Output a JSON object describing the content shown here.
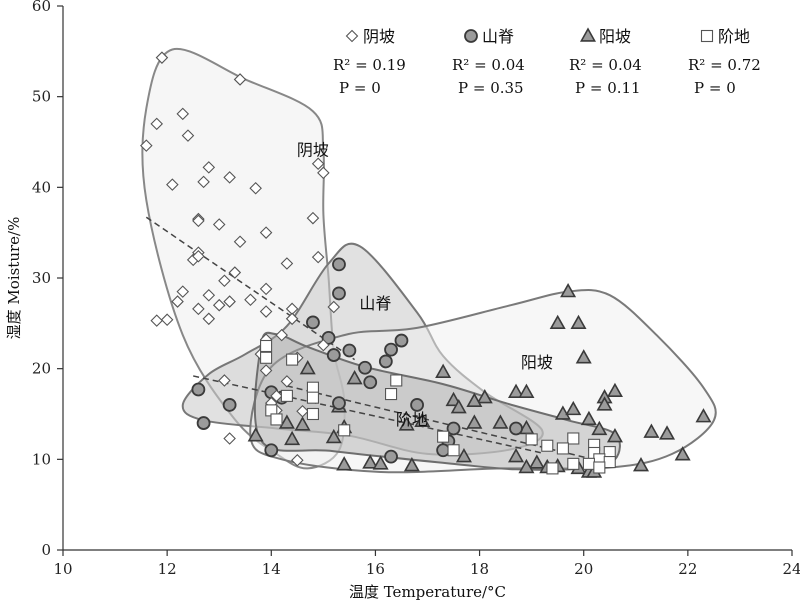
{
  "chart_data": {
    "type": "scatter",
    "xlabel": "温度 Temperature/°C",
    "ylabel": "湿度 Moisture/%",
    "xlim": [
      10,
      24
    ],
    "ylim": [
      0,
      60
    ],
    "xticks": [
      "10",
      "12",
      "14",
      "16",
      "18",
      "20",
      "22",
      "24"
    ],
    "yticks": [
      "0",
      "10",
      "20",
      "30",
      "40",
      "50",
      "60"
    ],
    "grid": false,
    "legend_position": "top",
    "series": [
      {
        "name": "阴坡",
        "marker": "diamond",
        "fill": "#ffffff",
        "stroke": "#555555",
        "r2": "R² = 0.19",
        "p": "P = 0",
        "trend": [
          [
            11.6,
            36.7
          ],
          [
            15.6,
            21.0
          ]
        ],
        "points": [
          [
            11.9,
            54.3
          ],
          [
            13.4,
            51.9
          ],
          [
            11.8,
            47.0
          ],
          [
            12.3,
            48.1
          ],
          [
            12.4,
            45.7
          ],
          [
            11.6,
            44.6
          ],
          [
            14.9,
            42.6
          ],
          [
            12.8,
            42.2
          ],
          [
            13.2,
            41.1
          ],
          [
            12.7,
            40.6
          ],
          [
            15.0,
            41.6
          ],
          [
            12.1,
            40.3
          ],
          [
            13.7,
            39.9
          ],
          [
            14.8,
            36.6
          ],
          [
            12.6,
            36.5
          ],
          [
            13.0,
            35.9
          ],
          [
            12.6,
            36.3
          ],
          [
            13.9,
            35.0
          ],
          [
            13.4,
            34.0
          ],
          [
            12.6,
            32.8
          ],
          [
            12.5,
            32.0
          ],
          [
            14.9,
            32.3
          ],
          [
            12.6,
            32.4
          ],
          [
            13.3,
            30.6
          ],
          [
            14.3,
            31.6
          ],
          [
            13.1,
            29.7
          ],
          [
            13.9,
            28.8
          ],
          [
            12.3,
            28.5
          ],
          [
            12.8,
            28.1
          ],
          [
            13.6,
            27.6
          ],
          [
            12.2,
            27.4
          ],
          [
            13.2,
            27.4
          ],
          [
            13.0,
            27.0
          ],
          [
            12.6,
            26.6
          ],
          [
            14.4,
            26.6
          ],
          [
            13.9,
            26.3
          ],
          [
            15.2,
            26.8
          ],
          [
            12.0,
            25.4
          ],
          [
            11.8,
            25.3
          ],
          [
            12.8,
            25.5
          ],
          [
            14.4,
            25.5
          ],
          [
            14.2,
            23.7
          ],
          [
            13.9,
            23.2
          ],
          [
            15.0,
            22.6
          ],
          [
            13.8,
            21.6
          ],
          [
            14.5,
            21.2
          ],
          [
            13.9,
            19.8
          ],
          [
            13.1,
            18.7
          ],
          [
            14.3,
            18.6
          ],
          [
            14.1,
            17.0
          ],
          [
            14.0,
            16.2
          ],
          [
            14.1,
            15.4
          ],
          [
            14.6,
            15.3
          ],
          [
            13.2,
            12.3
          ],
          [
            14.5,
            9.9
          ]
        ]
      },
      {
        "name": "山脊",
        "marker": "circle",
        "fill": "#9b9b9b",
        "stroke": "#3a3a3a",
        "r2": "R² = 0.04",
        "p": "P = 0.35",
        "trend": [
          [
            12.5,
            19.2
          ],
          [
            19.2,
            10.7
          ]
        ],
        "points": [
          [
            15.3,
            31.5
          ],
          [
            15.3,
            28.3
          ],
          [
            14.8,
            25.1
          ],
          [
            15.1,
            23.4
          ],
          [
            16.5,
            23.1
          ],
          [
            16.3,
            22.1
          ],
          [
            15.5,
            22.0
          ],
          [
            15.2,
            21.5
          ],
          [
            16.2,
            20.8
          ],
          [
            15.8,
            20.1
          ],
          [
            15.9,
            18.5
          ],
          [
            14.0,
            17.4
          ],
          [
            12.6,
            17.7
          ],
          [
            14.2,
            16.8
          ],
          [
            13.2,
            16.0
          ],
          [
            15.3,
            16.2
          ],
          [
            16.8,
            16.0
          ],
          [
            17.5,
            13.4
          ],
          [
            18.7,
            13.4
          ],
          [
            17.4,
            12.0
          ],
          [
            12.7,
            14.0
          ],
          [
            17.3,
            11.0
          ],
          [
            14.0,
            11.0
          ],
          [
            16.3,
            10.3
          ]
        ]
      },
      {
        "name": "阳坡",
        "marker": "triangle",
        "fill": "#9b9b9b",
        "stroke": "#3a3a3a",
        "r2": "R² = 0.04",
        "p": "P = 0.11",
        "trend": null,
        "points": [
          [
            19.7,
            28.5
          ],
          [
            19.5,
            25.0
          ],
          [
            19.9,
            25.0
          ],
          [
            20.0,
            21.2
          ],
          [
            17.3,
            19.6
          ],
          [
            14.7,
            20.0
          ],
          [
            15.6,
            18.9
          ],
          [
            18.7,
            17.4
          ],
          [
            18.9,
            17.4
          ],
          [
            20.6,
            17.5
          ],
          [
            20.4,
            16.8
          ],
          [
            20.4,
            16.0
          ],
          [
            18.1,
            16.8
          ],
          [
            17.9,
            16.4
          ],
          [
            17.5,
            16.5
          ],
          [
            17.6,
            15.7
          ],
          [
            15.3,
            15.8
          ],
          [
            14.3,
            14.0
          ],
          [
            14.6,
            13.8
          ],
          [
            15.4,
            13.5
          ],
          [
            16.6,
            13.8
          ],
          [
            16.9,
            14.2
          ],
          [
            17.9,
            14.0
          ],
          [
            18.4,
            14.0
          ],
          [
            18.9,
            13.4
          ],
          [
            19.6,
            15.0
          ],
          [
            19.8,
            15.5
          ],
          [
            20.1,
            14.4
          ],
          [
            20.3,
            13.3
          ],
          [
            20.6,
            12.5
          ],
          [
            21.3,
            13.0
          ],
          [
            21.6,
            12.8
          ],
          [
            22.3,
            14.7
          ],
          [
            13.7,
            12.6
          ],
          [
            14.4,
            12.2
          ],
          [
            15.2,
            12.4
          ],
          [
            17.7,
            10.3
          ],
          [
            18.7,
            10.3
          ],
          [
            19.1,
            9.6
          ],
          [
            19.5,
            9.2
          ],
          [
            15.4,
            9.4
          ],
          [
            15.9,
            9.6
          ],
          [
            16.1,
            9.5
          ],
          [
            16.7,
            9.3
          ],
          [
            18.9,
            9.1
          ],
          [
            19.3,
            9.1
          ],
          [
            19.9,
            9.0
          ],
          [
            20.1,
            8.6
          ],
          [
            21.1,
            9.3
          ],
          [
            21.9,
            10.5
          ],
          [
            20.2,
            8.6
          ]
        ]
      },
      {
        "name": "阶地",
        "marker": "square",
        "fill": "#ffffff",
        "stroke": "#555555",
        "r2": "R² = 0.72",
        "p": "P = 0",
        "trend": [
          [
            14.3,
            18.1
          ],
          [
            20.4,
            9.7
          ]
        ],
        "points": [
          [
            13.9,
            22.5
          ],
          [
            13.9,
            21.2
          ],
          [
            14.4,
            21.0
          ],
          [
            14.8,
            17.9
          ],
          [
            14.3,
            17.0
          ],
          [
            14.8,
            16.8
          ],
          [
            16.4,
            18.7
          ],
          [
            16.3,
            17.2
          ],
          [
            14.0,
            15.4
          ],
          [
            14.8,
            15.0
          ],
          [
            14.1,
            14.4
          ],
          [
            15.4,
            13.2
          ],
          [
            17.3,
            12.5
          ],
          [
            19.0,
            12.2
          ],
          [
            19.8,
            12.3
          ],
          [
            20.2,
            11.6
          ],
          [
            19.3,
            11.5
          ],
          [
            17.5,
            11.0
          ],
          [
            19.6,
            11.2
          ],
          [
            20.2,
            10.7
          ],
          [
            20.5,
            10.8
          ],
          [
            20.3,
            10.0
          ],
          [
            20.5,
            9.7
          ],
          [
            19.8,
            9.5
          ],
          [
            20.1,
            9.5
          ],
          [
            20.3,
            9.1
          ],
          [
            19.4,
            9.0
          ]
        ]
      }
    ],
    "regions": [
      {
        "name": "阴坡",
        "label_pos": [
          14.8,
          43.5
        ],
        "fill": "#ececec",
        "opacity": 0.45,
        "stroke": "#888888",
        "path": [
          [
            13.5,
            51.9
          ],
          [
            12.1,
            55.2
          ],
          [
            11.6,
            48.7
          ],
          [
            11.6,
            38.6
          ],
          [
            12.3,
            23.7
          ],
          [
            13.3,
            14.4
          ],
          [
            14.1,
            10.6
          ],
          [
            14.7,
            9.0
          ],
          [
            15.3,
            11.0
          ],
          [
            15.4,
            16.6
          ],
          [
            15.2,
            22.0
          ],
          [
            15.1,
            30.0
          ],
          [
            15.0,
            37.0
          ],
          [
            15.0,
            44.0
          ],
          [
            14.8,
            48.4
          ]
        ]
      },
      {
        "name": "山脊",
        "label_pos": [
          16.0,
          26.6
        ],
        "fill": "#c9c9c9",
        "opacity": 0.55,
        "stroke": "#777777",
        "path": [
          [
            12.3,
            16.0
          ],
          [
            12.8,
            19.4
          ],
          [
            13.5,
            21.6
          ],
          [
            14.3,
            24.7
          ],
          [
            15.1,
            31.6
          ],
          [
            15.7,
            33.5
          ],
          [
            16.8,
            26.2
          ],
          [
            17.3,
            21.4
          ],
          [
            18.1,
            17.4
          ],
          [
            19.2,
            13.2
          ],
          [
            18.6,
            11.1
          ],
          [
            17.0,
            10.6
          ],
          [
            15.5,
            12.6
          ],
          [
            14.1,
            13.4
          ],
          [
            12.7,
            14.3
          ]
        ]
      },
      {
        "name": "阳坡",
        "label_pos": [
          19.1,
          20.1
        ],
        "fill": "#f0f0f0",
        "opacity": 0.5,
        "stroke": "#7a7a7a",
        "path": [
          [
            13.6,
            12.5
          ],
          [
            14.0,
            20.2
          ],
          [
            15.4,
            23.7
          ],
          [
            16.8,
            24.5
          ],
          [
            18.6,
            27.0
          ],
          [
            19.7,
            28.5
          ],
          [
            20.5,
            28.1
          ],
          [
            21.4,
            23.7
          ],
          [
            22.3,
            17.9
          ],
          [
            22.5,
            14.3
          ],
          [
            21.7,
            10.6
          ],
          [
            20.5,
            9.1
          ],
          [
            18.4,
            9.0
          ],
          [
            16.1,
            8.6
          ],
          [
            14.2,
            10.0
          ]
        ]
      },
      {
        "name": "阶地",
        "label_pos": [
          16.7,
          13.8
        ],
        "fill": "#a9a9a9",
        "opacity": 0.45,
        "stroke": "#6e6e6e",
        "path": [
          [
            13.8,
            12.1
          ],
          [
            13.8,
            22.6
          ],
          [
            14.1,
            23.8
          ],
          [
            14.7,
            22.4
          ],
          [
            15.8,
            20.2
          ],
          [
            17.3,
            18.3
          ],
          [
            18.5,
            16.2
          ],
          [
            19.7,
            14.3
          ],
          [
            20.6,
            12.8
          ],
          [
            20.6,
            10.0
          ],
          [
            20.0,
            9.0
          ],
          [
            18.7,
            8.9
          ],
          [
            17.5,
            9.5
          ],
          [
            15.2,
            10.9
          ]
        ]
      }
    ],
    "legend": [
      {
        "marker": "diamond",
        "label": "阴坡",
        "r2": "R² = 0.19",
        "p": "P = 0"
      },
      {
        "marker": "circle",
        "label": "山脊",
        "r2": "R² = 0.04",
        "p": "P = 0.35"
      },
      {
        "marker": "triangle",
        "label": "阳坡",
        "r2": "R² = 0.04",
        "p": "P = 0.11"
      },
      {
        "marker": "square",
        "label": "阶地",
        "r2": "R² = 0.72",
        "p": "P = 0"
      }
    ]
  }
}
